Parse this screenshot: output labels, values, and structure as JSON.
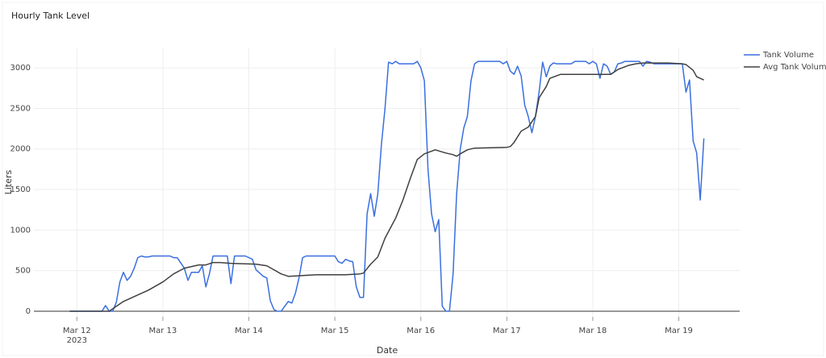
{
  "chart_data": {
    "type": "line",
    "title": "Hourly Tank Level",
    "x_label": "Date",
    "y_label": "Liters",
    "xlim": [
      "2023-03-11 12:00",
      "2023-03-19 17:00"
    ],
    "xticks": [
      {
        "value": "2023-03-12 00:00",
        "label": "Mar 12\n2023"
      },
      {
        "value": "2023-03-13 00:00",
        "label": "Mar 13"
      },
      {
        "value": "2023-03-14 00:00",
        "label": "Mar 14"
      },
      {
        "value": "2023-03-15 00:00",
        "label": "Mar 15"
      },
      {
        "value": "2023-03-16 00:00",
        "label": "Mar 16"
      },
      {
        "value": "2023-03-17 00:00",
        "label": "Mar 17"
      },
      {
        "value": "2023-03-18 00:00",
        "label": "Mar 18"
      },
      {
        "value": "2023-03-19 00:00",
        "label": "Mar 19"
      }
    ],
    "ylim": [
      -70,
      3240
    ],
    "yticks": [
      0,
      500,
      1000,
      1500,
      2000,
      2500,
      3000
    ],
    "grid": true,
    "legend": "top-right",
    "series": [
      {
        "name": "Tank Volume",
        "color": "#3a6fe0",
        "x": [
          "2023-03-11 22:00",
          "2023-03-12 07:00",
          "2023-03-12 08:00",
          "2023-03-12 09:00",
          "2023-03-12 10:00",
          "2023-03-12 11:00",
          "2023-03-12 12:00",
          "2023-03-12 13:00",
          "2023-03-12 14:00",
          "2023-03-12 15:00",
          "2023-03-12 16:00",
          "2023-03-12 17:00",
          "2023-03-12 18:00",
          "2023-03-12 19:00",
          "2023-03-12 20:00",
          "2023-03-12 21:00",
          "2023-03-13 02:00",
          "2023-03-13 03:00",
          "2023-03-13 04:00",
          "2023-03-13 06:00",
          "2023-03-13 07:00",
          "2023-03-13 08:00",
          "2023-03-13 10:00",
          "2023-03-13 11:00",
          "2023-03-13 12:00",
          "2023-03-13 13:00",
          "2023-03-13 14:00",
          "2023-03-13 16:00",
          "2023-03-13 17:00",
          "2023-03-13 18:00",
          "2023-03-13 19:00",
          "2023-03-13 20:00",
          "2023-03-13 23:00",
          "2023-03-14 01:00",
          "2023-03-14 02:00",
          "2023-03-14 04:00",
          "2023-03-14 05:00",
          "2023-03-14 06:00",
          "2023-03-14 07:00",
          "2023-03-14 08:00",
          "2023-03-14 09:00",
          "2023-03-14 10:00",
          "2023-03-14 11:00",
          "2023-03-14 12:00",
          "2023-03-14 13:00",
          "2023-03-14 14:00",
          "2023-03-14 15:00",
          "2023-03-14 16:00",
          "2023-03-14 19:00",
          "2023-03-14 22:00",
          "2023-03-15 00:00",
          "2023-03-15 01:00",
          "2023-03-15 02:00",
          "2023-03-15 03:00",
          "2023-03-15 04:00",
          "2023-03-15 05:00",
          "2023-03-15 06:00",
          "2023-03-15 07:00",
          "2023-03-15 08:00",
          "2023-03-15 09:00",
          "2023-03-15 10:00",
          "2023-03-15 11:00",
          "2023-03-15 12:00",
          "2023-03-15 13:00",
          "2023-03-15 14:00",
          "2023-03-15 15:00",
          "2023-03-15 16:00",
          "2023-03-15 17:00",
          "2023-03-15 18:00",
          "2023-03-15 22:00",
          "2023-03-15 23:00",
          "2023-03-16 00:00",
          "2023-03-16 01:00",
          "2023-03-16 02:00",
          "2023-03-16 03:00",
          "2023-03-16 04:00",
          "2023-03-16 05:00",
          "2023-03-16 06:00",
          "2023-03-16 07:00",
          "2023-03-16 08:00",
          "2023-03-16 09:00",
          "2023-03-16 10:00",
          "2023-03-16 11:00",
          "2023-03-16 12:00",
          "2023-03-16 13:00",
          "2023-03-16 14:00",
          "2023-03-16 15:00",
          "2023-03-16 16:00",
          "2023-03-16 22:00",
          "2023-03-16 23:00",
          "2023-03-17 00:00",
          "2023-03-17 01:00",
          "2023-03-17 02:00",
          "2023-03-17 03:00",
          "2023-03-17 04:00",
          "2023-03-17 05:00",
          "2023-03-17 06:00",
          "2023-03-17 07:00",
          "2023-03-17 08:00",
          "2023-03-17 09:00",
          "2023-03-17 10:00",
          "2023-03-17 11:00",
          "2023-03-17 12:00",
          "2023-03-17 13:00",
          "2023-03-17 14:00",
          "2023-03-17 18:00",
          "2023-03-17 19:00",
          "2023-03-17 22:00",
          "2023-03-17 23:00",
          "2023-03-18 00:00",
          "2023-03-18 01:00",
          "2023-03-18 02:00",
          "2023-03-18 03:00",
          "2023-03-18 04:00",
          "2023-03-18 05:00",
          "2023-03-18 06:00",
          "2023-03-18 07:00",
          "2023-03-18 08:00",
          "2023-03-18 09:00",
          "2023-03-18 13:00",
          "2023-03-18 14:00",
          "2023-03-18 15:00",
          "2023-03-18 16:00",
          "2023-03-18 17:00",
          "2023-03-19 01:00",
          "2023-03-19 02:00",
          "2023-03-19 03:00",
          "2023-03-19 04:00",
          "2023-03-19 05:00",
          "2023-03-19 06:00",
          "2023-03-19 07:00"
        ],
        "values": [
          0,
          0,
          70,
          0,
          0,
          110,
          360,
          480,
          380,
          430,
          530,
          660,
          680,
          670,
          670,
          680,
          680,
          660,
          660,
          530,
          380,
          480,
          480,
          560,
          300,
          460,
          680,
          680,
          680,
          680,
          340,
          680,
          680,
          640,
          510,
          430,
          410,
          130,
          20,
          0,
          0,
          60,
          120,
          100,
          220,
          410,
          660,
          680,
          680,
          680,
          680,
          610,
          590,
          640,
          620,
          610,
          300,
          170,
          170,
          1200,
          1450,
          1170,
          1450,
          2050,
          2500,
          3070,
          3050,
          3080,
          3050,
          3050,
          3080,
          3000,
          2840,
          1750,
          1200,
          980,
          1130,
          60,
          0,
          0,
          460,
          1450,
          2000,
          2260,
          2400,
          2840,
          3050,
          3080,
          3080,
          3050,
          3080,
          2960,
          2920,
          3020,
          2900,
          2540,
          2400,
          2200,
          2400,
          2700,
          3070,
          2890,
          3020,
          3060,
          3050,
          3050,
          3080,
          3080,
          3050,
          3080,
          3050,
          2870,
          3050,
          3020,
          2920,
          2950,
          3050,
          3060,
          3080,
          3080,
          3020,
          3080,
          3070,
          3050,
          3050,
          2700,
          2850,
          2100,
          1950,
          1370,
          2130
        ]
      },
      {
        "name": "Avg Tank Volume",
        "color": "#404040",
        "x": [
          "2023-03-11 22:00",
          "2023-03-12 09:00",
          "2023-03-12 11:00",
          "2023-03-12 13:00",
          "2023-03-12 17:00",
          "2023-03-12 20:00",
          "2023-03-13 00:00",
          "2023-03-13 03:00",
          "2023-03-13 06:00",
          "2023-03-13 10:00",
          "2023-03-13 12:00",
          "2023-03-13 14:00",
          "2023-03-13 16:00",
          "2023-03-13 19:00",
          "2023-03-14 02:00",
          "2023-03-14 05:00",
          "2023-03-14 07:00",
          "2023-03-14 09:00",
          "2023-03-14 11:00",
          "2023-03-14 15:00",
          "2023-03-14 19:00",
          "2023-03-15 03:00",
          "2023-03-15 07:00",
          "2023-03-15 08:00",
          "2023-03-15 10:00",
          "2023-03-15 12:00",
          "2023-03-15 14:00",
          "2023-03-15 17:00",
          "2023-03-15 19:00",
          "2023-03-15 21:00",
          "2023-03-15 23:00",
          "2023-03-16 01:00",
          "2023-03-16 04:00",
          "2023-03-16 07:00",
          "2023-03-16 09:00",
          "2023-03-16 10:00",
          "2023-03-16 11:00",
          "2023-03-16 13:00",
          "2023-03-16 15:00",
          "2023-03-17 00:00",
          "2023-03-17 01:00",
          "2023-03-17 02:00",
          "2023-03-17 04:00",
          "2023-03-17 06:00",
          "2023-03-17 08:00",
          "2023-03-17 09:00",
          "2023-03-17 11:00",
          "2023-03-17 12:00",
          "2023-03-17 15:00",
          "2023-03-18 01:00",
          "2023-03-18 05:00",
          "2023-03-18 07:00",
          "2023-03-18 10:00",
          "2023-03-18 12:00",
          "2023-03-18 14:00",
          "2023-03-18 21:00",
          "2023-03-19 01:00",
          "2023-03-19 02:00",
          "2023-03-19 04:00",
          "2023-03-19 05:00",
          "2023-03-19 07:00"
        ],
        "values": [
          0,
          0,
          60,
          120,
          200,
          260,
          360,
          460,
          530,
          570,
          570,
          600,
          600,
          590,
          580,
          560,
          510,
          460,
          430,
          440,
          450,
          450,
          460,
          470,
          580,
          670,
          900,
          1150,
          1370,
          1630,
          1870,
          1940,
          1990,
          1950,
          1930,
          1910,
          1940,
          1990,
          2010,
          2020,
          2030,
          2080,
          2220,
          2270,
          2400,
          2630,
          2770,
          2870,
          2920,
          2920,
          2920,
          2980,
          3030,
          3050,
          3060,
          3060,
          3050,
          3040,
          2970,
          2890,
          2850
        ]
      }
    ]
  }
}
